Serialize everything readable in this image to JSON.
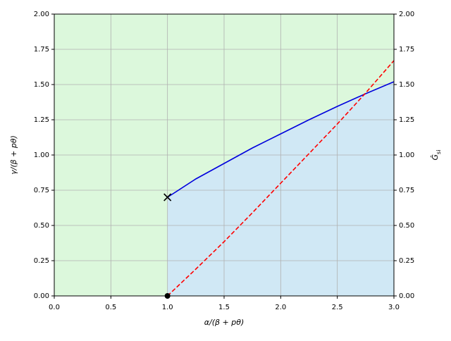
{
  "chart_data": {
    "type": "line",
    "xlabel": "α/(β + pθ)",
    "ylabel": "γ/(β + pθ)",
    "y2label": {
      "main": "Ĝ",
      "sub": "si"
    },
    "xlim": [
      0,
      3
    ],
    "ylim": [
      0,
      2
    ],
    "y2lim": [
      0,
      2
    ],
    "xticks": [
      {
        "value": 0,
        "label": "0.0"
      },
      {
        "value": 0.5,
        "label": "0.5"
      },
      {
        "value": 1,
        "label": "1.0"
      },
      {
        "value": 1.5,
        "label": "1.5"
      },
      {
        "value": 2,
        "label": "2.0"
      },
      {
        "value": 2.5,
        "label": "2.5"
      },
      {
        "value": 3,
        "label": "3.0"
      }
    ],
    "yticks": [
      {
        "value": 0,
        "label": "0.00"
      },
      {
        "value": 0.25,
        "label": "0.25"
      },
      {
        "value": 0.5,
        "label": "0.50"
      },
      {
        "value": 0.75,
        "label": "0.75"
      },
      {
        "value": 1,
        "label": "1.00"
      },
      {
        "value": 1.25,
        "label": "1.25"
      },
      {
        "value": 1.5,
        "label": "1.50"
      },
      {
        "value": 1.75,
        "label": "1.75"
      },
      {
        "value": 2,
        "label": "2.00"
      }
    ],
    "y2ticks": [
      {
        "value": 0,
        "label": "0.00"
      },
      {
        "value": 0.25,
        "label": "0.25"
      },
      {
        "value": 0.5,
        "label": "0.50"
      },
      {
        "value": 0.75,
        "label": "0.75"
      },
      {
        "value": 1,
        "label": "1.00"
      },
      {
        "value": 1.25,
        "label": "1.25"
      },
      {
        "value": 1.5,
        "label": "1.50"
      },
      {
        "value": 1.75,
        "label": "1.75"
      },
      {
        "value": 2,
        "label": "2.00"
      }
    ],
    "grid": true,
    "background": "#dcf8dc",
    "x": [
      1,
      1.25,
      1.5,
      1.75,
      2,
      2.25,
      2.5,
      2.75,
      3
    ],
    "series": [
      {
        "color": "#0000dd",
        "fill_color": "#d0e8f5",
        "values": [
          0.7,
          0.83,
          0.94,
          1.05,
          1.15,
          1.25,
          1.345,
          1.435,
          1.52
        ]
      },
      {
        "color": "#ff0000",
        "dash": true,
        "axis": "y2",
        "values": [
          0,
          0.19,
          0.385,
          0.59,
          0.8,
          1.01,
          1.22,
          1.44,
          1.67
        ]
      }
    ],
    "points": [
      {
        "x": 1,
        "y": 0.7,
        "marker": "x",
        "color": "#000000"
      },
      {
        "x": 1,
        "y": 0,
        "marker": "o",
        "color": "#000000"
      }
    ]
  }
}
